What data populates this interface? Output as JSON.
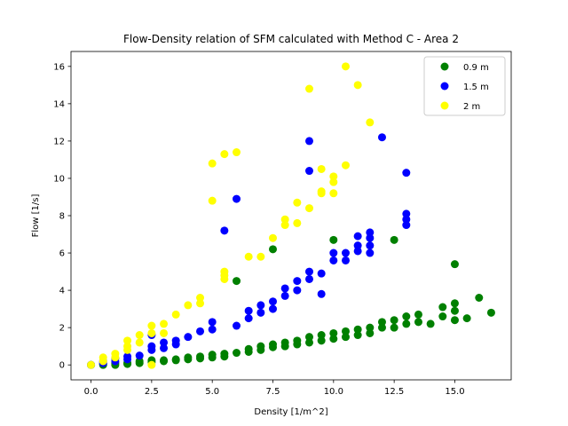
{
  "chart_data": {
    "type": "scatter",
    "title": "Flow-Density relation of SFM calculated with Method C - Area 2",
    "xlabel": "Density [1/m^2]",
    "ylabel": "Flow [1/s]",
    "xlim": [
      -0.825,
      17.325
    ],
    "ylim": [
      -0.8,
      16.8
    ],
    "xticks": [
      0.0,
      2.5,
      5.0,
      7.5,
      10.0,
      12.5,
      15.0
    ],
    "xtick_labels": [
      "0.0",
      "2.5",
      "5.0",
      "7.5",
      "10.0",
      "12.5",
      "15.0"
    ],
    "yticks": [
      0,
      2,
      4,
      6,
      8,
      10,
      12,
      14,
      16
    ],
    "ytick_labels": [
      "0",
      "2",
      "4",
      "6",
      "8",
      "10",
      "12",
      "14",
      "16"
    ],
    "grid": false,
    "legend_position": "top-right",
    "series": [
      {
        "name": "0.9 m",
        "color": "#008000",
        "points": [
          [
            0.0,
            0.0
          ],
          [
            0.5,
            0.0
          ],
          [
            0.5,
            0.05
          ],
          [
            1.0,
            0.0
          ],
          [
            1.0,
            0.1
          ],
          [
            1.5,
            0.05
          ],
          [
            1.5,
            0.1
          ],
          [
            2.0,
            0.1
          ],
          [
            2.0,
            0.2
          ],
          [
            2.5,
            0.15
          ],
          [
            2.5,
            0.25
          ],
          [
            3.0,
            0.2
          ],
          [
            3.0,
            0.25
          ],
          [
            3.5,
            0.25
          ],
          [
            3.5,
            0.3
          ],
          [
            4.0,
            0.3
          ],
          [
            4.0,
            0.4
          ],
          [
            4.5,
            0.35
          ],
          [
            4.5,
            0.45
          ],
          [
            5.0,
            0.4
          ],
          [
            5.0,
            0.55
          ],
          [
            5.5,
            0.45
          ],
          [
            5.5,
            0.6
          ],
          [
            6.0,
            0.65
          ],
          [
            6.0,
            4.5
          ],
          [
            6.5,
            0.7
          ],
          [
            6.5,
            0.85
          ],
          [
            7.0,
            0.8
          ],
          [
            7.0,
            1.0
          ],
          [
            7.5,
            0.95
          ],
          [
            7.5,
            1.1
          ],
          [
            7.5,
            6.2
          ],
          [
            8.0,
            1.0
          ],
          [
            8.0,
            1.2
          ],
          [
            8.5,
            1.1
          ],
          [
            8.5,
            1.3
          ],
          [
            9.0,
            1.2
          ],
          [
            9.0,
            1.5
          ],
          [
            9.5,
            1.3
          ],
          [
            9.5,
            1.6
          ],
          [
            10.0,
            1.4
          ],
          [
            10.0,
            1.7
          ],
          [
            10.0,
            6.7
          ],
          [
            10.5,
            1.5
          ],
          [
            10.5,
            1.8
          ],
          [
            11.0,
            1.6
          ],
          [
            11.0,
            1.9
          ],
          [
            11.5,
            1.7
          ],
          [
            11.5,
            2.0
          ],
          [
            12.0,
            2.0
          ],
          [
            12.0,
            2.3
          ],
          [
            12.5,
            2.0
          ],
          [
            12.5,
            2.4
          ],
          [
            12.5,
            6.7
          ],
          [
            13.0,
            2.2
          ],
          [
            13.0,
            2.6
          ],
          [
            13.5,
            2.3
          ],
          [
            13.5,
            2.7
          ],
          [
            14.0,
            2.2
          ],
          [
            14.5,
            2.6
          ],
          [
            14.5,
            3.1
          ],
          [
            15.0,
            2.4
          ],
          [
            15.0,
            2.9
          ],
          [
            15.0,
            3.3
          ],
          [
            15.0,
            5.4
          ],
          [
            15.5,
            2.5
          ],
          [
            16.0,
            3.6
          ],
          [
            16.5,
            2.8
          ]
        ]
      },
      {
        "name": "1.5 m",
        "color": "#0000ff",
        "points": [
          [
            0.0,
            0.0
          ],
          [
            0.5,
            0.1
          ],
          [
            0.5,
            0.2
          ],
          [
            1.0,
            0.2
          ],
          [
            1.0,
            0.35
          ],
          [
            1.5,
            0.3
          ],
          [
            1.5,
            0.45
          ],
          [
            2.0,
            0.5
          ],
          [
            2.5,
            0.8
          ],
          [
            2.5,
            1.0
          ],
          [
            2.5,
            1.6
          ],
          [
            3.0,
            0.9
          ],
          [
            3.0,
            1.2
          ],
          [
            3.5,
            1.1
          ],
          [
            3.5,
            1.3
          ],
          [
            4.0,
            1.5
          ],
          [
            4.5,
            1.8
          ],
          [
            5.0,
            1.9
          ],
          [
            5.0,
            2.3
          ],
          [
            5.5,
            7.2
          ],
          [
            6.0,
            2.1
          ],
          [
            6.0,
            8.9
          ],
          [
            6.5,
            2.5
          ],
          [
            6.5,
            2.9
          ],
          [
            7.0,
            2.8
          ],
          [
            7.0,
            3.2
          ],
          [
            7.5,
            3.0
          ],
          [
            7.5,
            3.4
          ],
          [
            8.0,
            3.7
          ],
          [
            8.0,
            4.1
          ],
          [
            8.5,
            4.0
          ],
          [
            8.5,
            4.5
          ],
          [
            9.0,
            4.6
          ],
          [
            9.0,
            5.0
          ],
          [
            9.0,
            10.4
          ],
          [
            9.0,
            12.0
          ],
          [
            9.5,
            3.8
          ],
          [
            9.5,
            4.9
          ],
          [
            10.0,
            5.6
          ],
          [
            10.0,
            6.0
          ],
          [
            10.5,
            5.6
          ],
          [
            10.5,
            6.0
          ],
          [
            11.0,
            6.1
          ],
          [
            11.0,
            6.4
          ],
          [
            11.0,
            6.9
          ],
          [
            11.5,
            6.0
          ],
          [
            11.5,
            6.4
          ],
          [
            11.5,
            6.8
          ],
          [
            11.5,
            7.1
          ],
          [
            12.0,
            12.2
          ],
          [
            13.0,
            7.5
          ],
          [
            13.0,
            7.8
          ],
          [
            13.0,
            8.1
          ],
          [
            13.0,
            10.3
          ]
        ]
      },
      {
        "name": "2 m",
        "color": "#ffff00",
        "points": [
          [
            0.0,
            0.0
          ],
          [
            0.5,
            0.2
          ],
          [
            0.5,
            0.4
          ],
          [
            1.0,
            0.4
          ],
          [
            1.0,
            0.6
          ],
          [
            1.5,
            0.8
          ],
          [
            1.5,
            1.0
          ],
          [
            1.5,
            1.3
          ],
          [
            2.0,
            1.2
          ],
          [
            2.0,
            1.6
          ],
          [
            2.5,
            0.0
          ],
          [
            2.5,
            1.7
          ],
          [
            2.5,
            2.1
          ],
          [
            3.0,
            1.7
          ],
          [
            3.0,
            2.2
          ],
          [
            3.5,
            2.7
          ],
          [
            4.0,
            3.2
          ],
          [
            4.5,
            3.3
          ],
          [
            4.5,
            3.6
          ],
          [
            5.0,
            8.8
          ],
          [
            5.0,
            10.8
          ],
          [
            5.5,
            4.6
          ],
          [
            5.5,
            4.8
          ],
          [
            5.5,
            5.0
          ],
          [
            5.5,
            11.3
          ],
          [
            6.0,
            11.4
          ],
          [
            6.5,
            5.8
          ],
          [
            7.0,
            5.8
          ],
          [
            7.5,
            6.8
          ],
          [
            8.0,
            7.5
          ],
          [
            8.0,
            7.8
          ],
          [
            8.5,
            7.6
          ],
          [
            8.5,
            8.7
          ],
          [
            9.0,
            8.4
          ],
          [
            9.0,
            14.8
          ],
          [
            9.5,
            9.2
          ],
          [
            9.5,
            9.3
          ],
          [
            9.5,
            10.5
          ],
          [
            10.0,
            9.2
          ],
          [
            10.0,
            9.8
          ],
          [
            10.0,
            10.1
          ],
          [
            10.5,
            10.7
          ],
          [
            10.5,
            16.0
          ],
          [
            11.0,
            15.0
          ],
          [
            11.5,
            13.0
          ]
        ]
      }
    ]
  }
}
